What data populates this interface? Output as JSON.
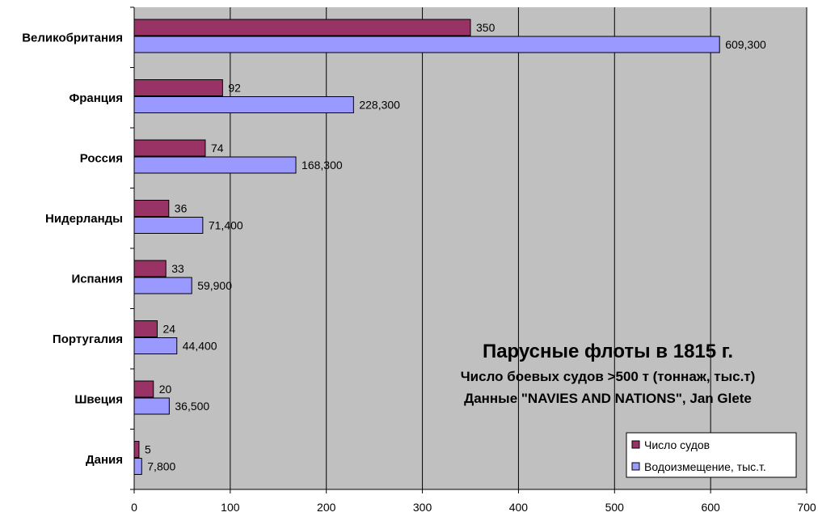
{
  "chart_data": {
    "type": "bar",
    "orientation": "horizontal",
    "title": "Парусные флоты в 1815 г.",
    "subtitle_lines": [
      "Число боевых судов >500 т (тоннаж, тыс.т)",
      "Данные \"NAVIES AND NATIONS\", Jan Glete"
    ],
    "categories": [
      "Великобритания",
      "Франция",
      "Россия",
      "Нидерланды",
      "Испания",
      "Португалия",
      "Швеция",
      "Дания"
    ],
    "series": [
      {
        "name": "Число судов",
        "color": "#993366",
        "values": [
          350,
          92,
          74,
          36,
          33,
          24,
          20,
          5
        ],
        "labels": [
          "350",
          "92",
          "74",
          "36",
          "33",
          "24",
          "20",
          "5"
        ]
      },
      {
        "name": "Водоизмещение, тыс.т.",
        "color": "#9999ff",
        "values": [
          609.3,
          228.3,
          168.3,
          71.4,
          59.9,
          44.4,
          36.5,
          7.8
        ],
        "labels": [
          "609,300",
          "228,300",
          "168,300",
          "71,400",
          "59,900",
          "44,400",
          "36,500",
          "7,800"
        ]
      }
    ],
    "xlim": [
      0,
      700
    ],
    "xticks": [
      "0",
      "100",
      "200",
      "300",
      "400",
      "500",
      "600",
      "700"
    ],
    "grid": true,
    "plot_background": "#c0c0c0",
    "legend_position": "bottom-right"
  }
}
